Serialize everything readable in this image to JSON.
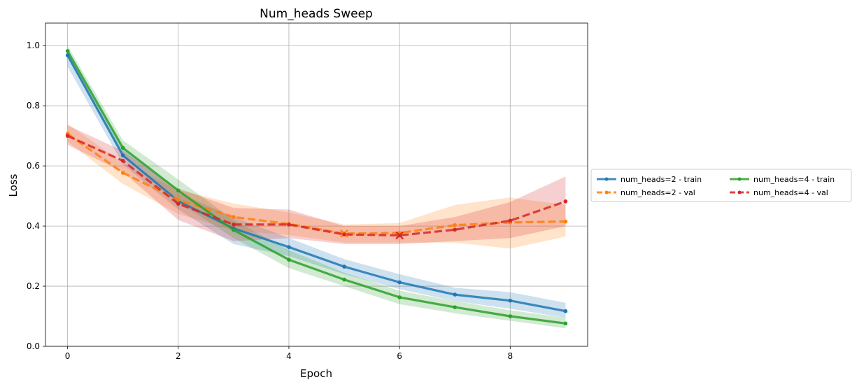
{
  "chart_data": {
    "type": "line",
    "title": "Num_heads Sweep",
    "xlabel": "Epoch",
    "ylabel": "Loss",
    "xlim": [
      -0.4,
      9.4
    ],
    "ylim": [
      0.0,
      1.075
    ],
    "xticks": [
      0,
      2,
      4,
      6,
      8
    ],
    "yticks": [
      0.0,
      0.2,
      0.4,
      0.6,
      0.8,
      1.0
    ],
    "xtick_labels": [
      "0",
      "2",
      "4",
      "6",
      "8"
    ],
    "ytick_labels": [
      "0.0",
      "0.2",
      "0.4",
      "0.6",
      "0.8",
      "1.0"
    ],
    "grid": true,
    "legend_placement": "right-outside",
    "x": [
      0,
      1,
      2,
      3,
      4,
      5,
      6,
      7,
      8,
      9
    ],
    "series": [
      {
        "name": "num_heads=2 - train",
        "color": "#1f77b4",
        "dash": "solid",
        "values": [
          0.968,
          0.635,
          0.483,
          0.392,
          0.33,
          0.265,
          0.213,
          0.172,
          0.152,
          0.117
        ],
        "lower": [
          0.93,
          0.605,
          0.455,
          0.34,
          0.3,
          0.24,
          0.19,
          0.15,
          0.125,
          0.095
        ],
        "upper": [
          0.98,
          0.66,
          0.51,
          0.43,
          0.36,
          0.29,
          0.24,
          0.195,
          0.18,
          0.145
        ],
        "best_epoch": null
      },
      {
        "name": "num_heads=2 - val",
        "color": "#ff7f0e",
        "dash": "dashed",
        "values": [
          0.707,
          0.577,
          0.487,
          0.43,
          0.407,
          0.375,
          0.377,
          0.403,
          0.412,
          0.415
        ],
        "lower": [
          0.68,
          0.54,
          0.44,
          0.385,
          0.37,
          0.345,
          0.345,
          0.345,
          0.325,
          0.365
        ],
        "upper": [
          0.74,
          0.61,
          0.52,
          0.475,
          0.445,
          0.405,
          0.41,
          0.47,
          0.495,
          0.47
        ],
        "best_epoch": 5
      },
      {
        "name": "num_heads=4 - train",
        "color": "#2ca02c",
        "dash": "solid",
        "values": [
          0.982,
          0.66,
          0.518,
          0.387,
          0.288,
          0.222,
          0.163,
          0.13,
          0.1,
          0.076
        ],
        "lower": [
          0.96,
          0.63,
          0.48,
          0.36,
          0.26,
          0.2,
          0.14,
          0.11,
          0.085,
          0.06
        ],
        "upper": [
          1.0,
          0.685,
          0.555,
          0.42,
          0.32,
          0.245,
          0.185,
          0.15,
          0.12,
          0.095
        ],
        "best_epoch": null
      },
      {
        "name": "num_heads=4 - val",
        "color": "#d62728",
        "dash": "dashed",
        "values": [
          0.7,
          0.617,
          0.474,
          0.405,
          0.405,
          0.372,
          0.369,
          0.388,
          0.418,
          0.482
        ],
        "lower": [
          0.67,
          0.58,
          0.42,
          0.35,
          0.36,
          0.34,
          0.34,
          0.35,
          0.36,
          0.4
        ],
        "upper": [
          0.735,
          0.65,
          0.525,
          0.46,
          0.455,
          0.4,
          0.4,
          0.43,
          0.48,
          0.565
        ],
        "best_epoch": 6
      }
    ]
  }
}
